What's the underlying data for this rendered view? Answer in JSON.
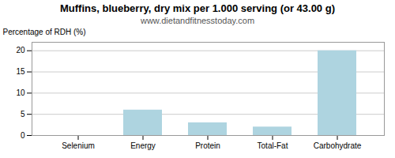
{
  "chart_data": {
    "type": "bar",
    "title": "Muffins, blueberry, dry mix per 1.000 serving (or 43.00 g)",
    "subtitle": "www.dietandfitnesstoday.com",
    "categories": [
      "Selenium",
      "Energy",
      "Protein",
      "Total-Fat",
      "Carbohydrate"
    ],
    "values": [
      0,
      6,
      3,
      2,
      20
    ],
    "color": "#aed4e0",
    "ylabel": "Percentage of RDH (%)",
    "ylim": [
      0,
      22
    ],
    "yticks": [
      0,
      5,
      10,
      15,
      20
    ],
    "grid": true
  }
}
